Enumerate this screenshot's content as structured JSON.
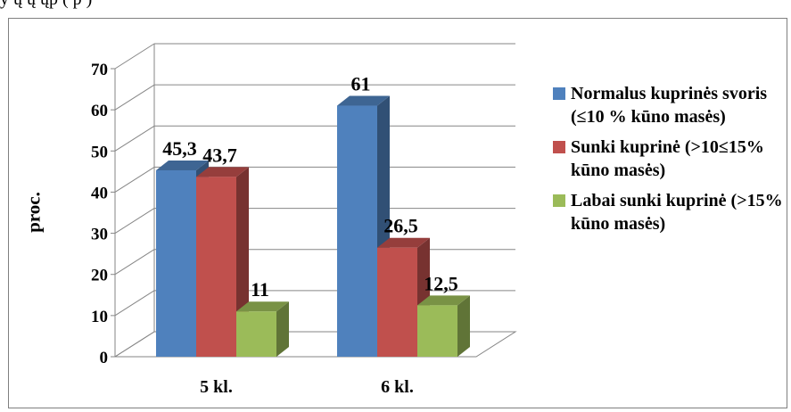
{
  "top_text": "y          ų     ų            ųp        (            p    )",
  "chart_data": {
    "type": "bar",
    "categories": [
      "5 kl.",
      "6 kl."
    ],
    "series": [
      {
        "name": "Normalus kuprinės svoris  (≤10 % kūno masės)",
        "values": [
          45.3,
          61
        ],
        "labels": [
          "45,3",
          "61"
        ],
        "color": "#4F81BD"
      },
      {
        "name": "Sunki kuprinė (>10≤15%  kūno masės)",
        "values": [
          43.7,
          26.5
        ],
        "labels": [
          "43,7",
          "26,5"
        ],
        "color": "#C0504D"
      },
      {
        "name": "Labai sunki kuprinė (>15% kūno masės)",
        "values": [
          11,
          12.5
        ],
        "labels": [
          "11",
          "12,5"
        ],
        "color": "#9BBB59"
      }
    ],
    "ylabel": "proc.",
    "ylim": [
      0,
      70
    ],
    "yticks": [
      0,
      10,
      20,
      30,
      40,
      50,
      60,
      70
    ],
    "grid": true,
    "legend_position": "right",
    "three_d": true
  }
}
